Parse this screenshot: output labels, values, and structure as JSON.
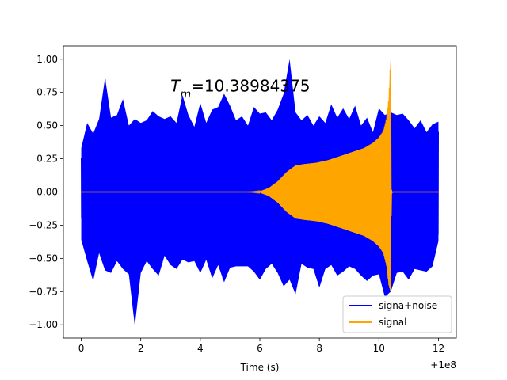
{
  "chart_data": {
    "type": "line",
    "xlabel": "Time (s)",
    "ylabel": "",
    "x_offset_label": "+1e8",
    "xlim": [
      -0.6,
      12.6
    ],
    "ylim": [
      -1.1,
      1.1
    ],
    "x_ticks": [
      0,
      2,
      4,
      6,
      8,
      10,
      12
    ],
    "x_tick_labels": [
      "0",
      "2",
      "4",
      "6",
      "8",
      "10",
      "12"
    ],
    "y_ticks": [
      1.0,
      0.75,
      0.5,
      0.25,
      0.0,
      -0.25,
      -0.5,
      -0.75,
      -1.0
    ],
    "y_tick_labels": [
      "1.00",
      "0.75",
      "0.50",
      "0.25",
      "0.00",
      "−0.25",
      "−0.50",
      "−0.75",
      "−1.00"
    ],
    "annotation": {
      "symbol": "T",
      "subscript": "m",
      "value_text": "=10.38984375",
      "x": 3.0,
      "y": 0.8
    },
    "legend": {
      "placement": "lower right",
      "entries": [
        "signa+noise",
        "signal"
      ]
    },
    "grid": false,
    "series": [
      {
        "name": "signa+noise",
        "color": "#0000ff",
        "x": [
          0.0,
          0.2,
          0.4,
          0.6,
          0.8,
          1.0,
          1.2,
          1.4,
          1.6,
          1.8,
          2.0,
          2.2,
          2.4,
          2.6,
          2.8,
          3.0,
          3.2,
          3.4,
          3.6,
          3.8,
          4.0,
          4.2,
          4.4,
          4.6,
          4.8,
          5.0,
          5.2,
          5.4,
          5.6,
          5.8,
          6.0,
          6.2,
          6.4,
          6.6,
          6.8,
          7.0,
          7.2,
          7.4,
          7.6,
          7.8,
          8.0,
          8.2,
          8.4,
          8.6,
          8.8,
          9.0,
          9.2,
          9.4,
          9.6,
          9.8,
          10.0,
          10.2,
          10.4,
          10.6,
          10.8,
          11.0,
          11.2,
          11.4,
          11.6,
          11.8,
          12.0
        ],
        "upper": [
          0.33,
          0.52,
          0.44,
          0.55,
          0.86,
          0.56,
          0.58,
          0.7,
          0.5,
          0.55,
          0.52,
          0.54,
          0.61,
          0.57,
          0.55,
          0.57,
          0.52,
          0.73,
          0.58,
          0.49,
          0.67,
          0.52,
          0.62,
          0.64,
          0.74,
          0.65,
          0.54,
          0.57,
          0.5,
          0.64,
          0.59,
          0.6,
          0.54,
          0.62,
          0.74,
          1.0,
          0.6,
          0.54,
          0.58,
          0.5,
          0.57,
          0.52,
          0.66,
          0.56,
          0.63,
          0.55,
          0.65,
          0.5,
          0.56,
          0.45,
          0.63,
          0.58,
          0.6,
          0.58,
          0.59,
          0.54,
          0.48,
          0.54,
          0.45,
          0.51,
          0.53
        ],
        "lower": [
          -0.36,
          -0.52,
          -0.67,
          -0.46,
          -0.59,
          -0.61,
          -0.52,
          -0.58,
          -0.62,
          -1.01,
          -0.61,
          -0.52,
          -0.58,
          -0.63,
          -0.48,
          -0.55,
          -0.58,
          -0.51,
          -0.53,
          -0.52,
          -0.61,
          -0.51,
          -0.65,
          -0.55,
          -0.68,
          -0.57,
          -0.56,
          -0.56,
          -0.56,
          -0.6,
          -0.66,
          -0.58,
          -0.54,
          -0.61,
          -0.71,
          -0.66,
          -0.77,
          -0.54,
          -0.57,
          -0.58,
          -0.72,
          -0.58,
          -0.55,
          -0.63,
          -0.6,
          -0.56,
          -0.58,
          -0.63,
          -0.67,
          -0.63,
          -0.62,
          -0.79,
          -0.75,
          -0.61,
          -0.6,
          -0.66,
          -0.58,
          -0.59,
          -0.6,
          -0.56,
          -0.37
        ]
      },
      {
        "name": "signal",
        "color": "#ffa500",
        "x": [
          0.0,
          5.0,
          5.6,
          6.0,
          6.3,
          6.6,
          6.9,
          7.2,
          7.5,
          7.9,
          8.3,
          8.7,
          9.1,
          9.5,
          9.8,
          10.0,
          10.15,
          10.25,
          10.33,
          10.39,
          10.42,
          10.45,
          12.0
        ],
        "upper": [
          0.0,
          0.0,
          0.0,
          0.005,
          0.03,
          0.08,
          0.15,
          0.2,
          0.21,
          0.22,
          0.24,
          0.27,
          0.3,
          0.33,
          0.37,
          0.41,
          0.46,
          0.55,
          0.7,
          1.0,
          0.02,
          0.0,
          0.0
        ],
        "lower": [
          0.0,
          0.0,
          0.0,
          -0.005,
          -0.03,
          -0.08,
          -0.15,
          -0.2,
          -0.21,
          -0.22,
          -0.24,
          -0.27,
          -0.3,
          -0.33,
          -0.37,
          -0.41,
          -0.46,
          -0.55,
          -0.7,
          -0.75,
          -0.02,
          0.0,
          0.0
        ]
      }
    ]
  }
}
